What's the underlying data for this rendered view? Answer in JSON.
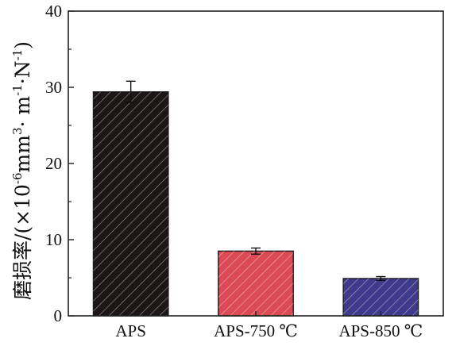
{
  "chart_data": {
    "type": "bar",
    "title": "",
    "xlabel": "",
    "ylabel": {
      "prefix": "磨损率/(×10",
      "exp1": "-6",
      "mid1": "mm",
      "exp2": "3",
      "mid2": "· m",
      "exp3": "-1",
      "mid3": "·N",
      "exp4": "-1",
      "suffix": ")"
    },
    "categories": [
      "APS",
      "APS-750 ℃",
      "APS-850 ℃"
    ],
    "values": [
      29.4,
      8.5,
      4.9
    ],
    "errors": [
      1.4,
      0.4,
      0.25
    ],
    "colors": [
      "#1d1617",
      "#dc4b55",
      "#3f3a8c"
    ],
    "hatch": "diagonal",
    "ylim": [
      0,
      40
    ],
    "yticks": [
      0,
      10,
      20,
      30,
      40
    ],
    "grid": false,
    "legend": "none"
  }
}
